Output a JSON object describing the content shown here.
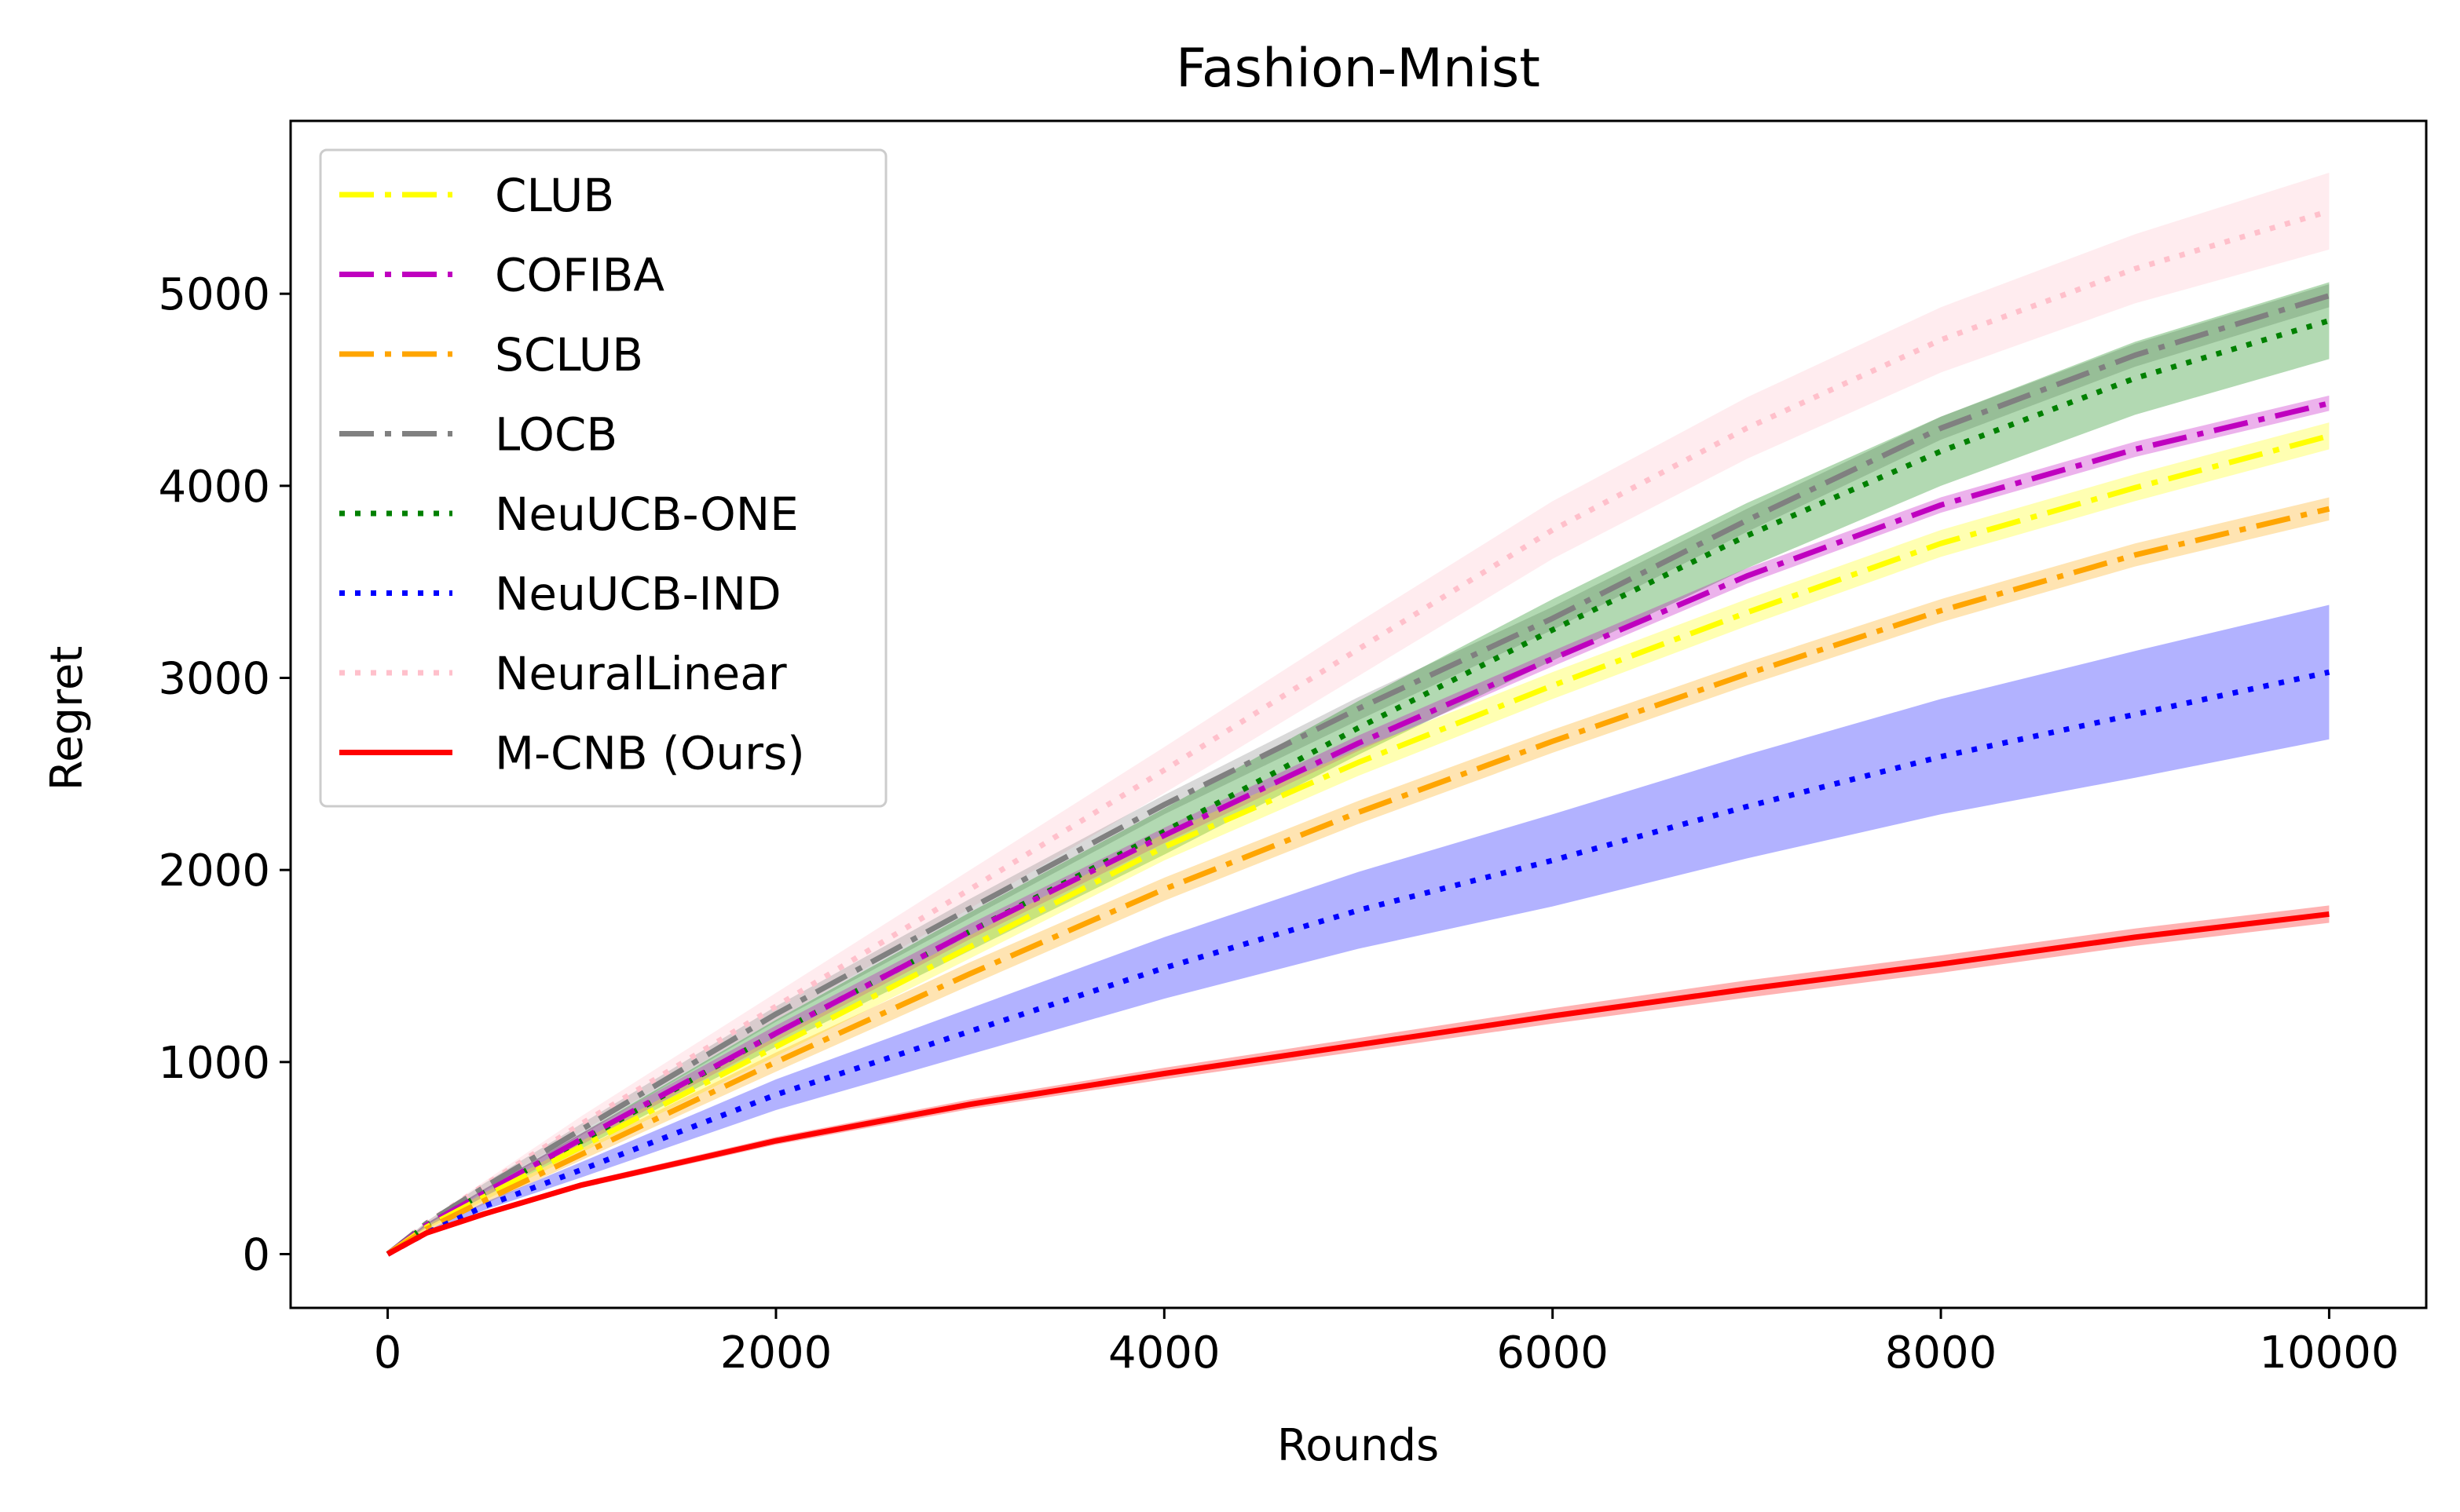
{
  "chart_data": {
    "type": "line",
    "title": "Fashion-Mnist",
    "xlabel": "Rounds",
    "ylabel": "Regret",
    "xlim": [
      -500,
      10500
    ],
    "ylim": [
      -280,
      5900
    ],
    "xticks": [
      0,
      2000,
      4000,
      6000,
      8000,
      10000
    ],
    "xtick_labels": [
      "0",
      "2000",
      "4000",
      "6000",
      "8000",
      "10000"
    ],
    "yticks": [
      0,
      1000,
      2000,
      3000,
      4000,
      5000
    ],
    "ytick_labels": [
      "0",
      "1000",
      "2000",
      "3000",
      "4000",
      "5000"
    ],
    "grid": false,
    "legend_position": "upper-left",
    "x": [
      0,
      200,
      500,
      1000,
      2000,
      3000,
      4000,
      5000,
      6000,
      7000,
      8000,
      9000,
      10000
    ],
    "series": [
      {
        "name": "CLUB",
        "color": "#ffff00",
        "style": "dashdot",
        "values": [
          0,
          140,
          300,
          560,
          1080,
          1600,
          2120,
          2560,
          2960,
          3340,
          3700,
          3990,
          4260
        ],
        "band": [
          0,
          10,
          20,
          30,
          50,
          60,
          70,
          70,
          70,
          70,
          70,
          70,
          70
        ]
      },
      {
        "name": "COFIBA",
        "color": "#bf00bf",
        "style": "dashdot",
        "values": [
          0,
          150,
          320,
          600,
          1150,
          1680,
          2180,
          2660,
          3100,
          3530,
          3900,
          4190,
          4430
        ],
        "band": [
          0,
          10,
          20,
          30,
          40,
          40,
          40,
          40,
          40,
          40,
          40,
          40,
          40
        ]
      },
      {
        "name": "SCLUB",
        "color": "#ffa500",
        "style": "dashdot",
        "values": [
          0,
          130,
          280,
          520,
          1000,
          1460,
          1900,
          2300,
          2670,
          3020,
          3350,
          3640,
          3880
        ],
        "band": [
          0,
          10,
          20,
          30,
          50,
          60,
          60,
          60,
          60,
          60,
          60,
          60,
          60
        ]
      },
      {
        "name": "LOCB",
        "color": "#808080",
        "style": "dashdot",
        "values": [
          0,
          160,
          350,
          650,
          1250,
          1800,
          2340,
          2840,
          3310,
          3820,
          4300,
          4680,
          4990
        ],
        "band": [
          0,
          10,
          20,
          30,
          40,
          50,
          50,
          60,
          60,
          60,
          60,
          60,
          60
        ]
      },
      {
        "name": "NeuUCB-ONE",
        "color": "#008000",
        "style": "dotted",
        "values": [
          0,
          150,
          320,
          590,
          1150,
          1680,
          2200,
          2740,
          3250,
          3740,
          4180,
          4560,
          4860
        ],
        "band": [
          0,
          10,
          20,
          40,
          70,
          100,
          120,
          140,
          160,
          170,
          180,
          190,
          200
        ]
      },
      {
        "name": "NeuUCB-IND",
        "color": "#0000ff",
        "style": "dotted",
        "values": [
          0,
          110,
          250,
          440,
          830,
          1160,
          1490,
          1790,
          2050,
          2330,
          2590,
          2810,
          3030
        ],
        "band": [
          0,
          10,
          20,
          40,
          80,
          120,
          160,
          200,
          240,
          270,
          300,
          330,
          350
        ]
      },
      {
        "name": "NeuralLinear",
        "color": "#ffc0cb",
        "style": "dotted",
        "values": [
          0,
          160,
          360,
          680,
          1290,
          1900,
          2520,
          3150,
          3770,
          4300,
          4760,
          5130,
          5430
        ],
        "band": [
          0,
          10,
          20,
          40,
          70,
          100,
          120,
          140,
          150,
          160,
          170,
          180,
          200
        ]
      },
      {
        "name": "M-CNB (Ours)",
        "color": "#ff0000",
        "style": "solid",
        "values": [
          0,
          110,
          210,
          360,
          590,
          780,
          940,
          1090,
          1240,
          1380,
          1510,
          1650,
          1770
        ],
        "band": [
          0,
          5,
          10,
          15,
          20,
          25,
          30,
          35,
          40,
          45,
          45,
          45,
          45
        ]
      }
    ]
  }
}
